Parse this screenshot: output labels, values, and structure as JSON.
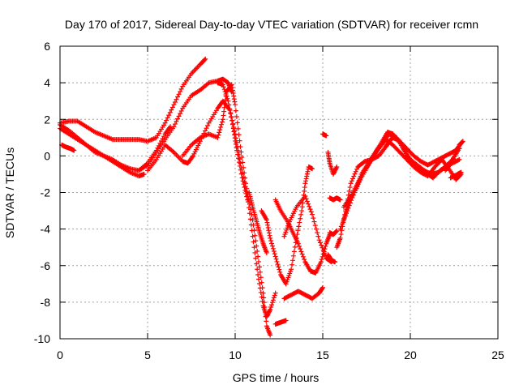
{
  "chart_data": {
    "type": "scatter",
    "title": "Day 170 of 2017, Sidereal Day-to-day VTEC variation (SDTVAR) for receiver rcmn",
    "xlabel": "GPS time / hours",
    "ylabel": "SDTVAR / TECUs",
    "xlim": [
      0,
      25
    ],
    "ylim": [
      -10,
      6
    ],
    "xticks": [
      0,
      5,
      10,
      15,
      20,
      25
    ],
    "yticks": [
      -10,
      -8,
      -6,
      -4,
      -2,
      0,
      2,
      4,
      6
    ],
    "grid": true,
    "marker": "+",
    "color": "#ff0000",
    "series": [
      {
        "x": [
          0.0,
          0.5,
          1.0,
          1.5,
          2.0,
          2.5,
          3.0,
          3.5,
          4.0,
          4.5,
          5.0,
          5.5,
          6.0,
          6.5,
          7.0,
          7.5,
          8.0,
          8.3
        ],
        "y": [
          1.8,
          1.9,
          1.9,
          1.6,
          1.3,
          1.1,
          0.9,
          0.9,
          0.9,
          0.9,
          0.8,
          1.0,
          1.8,
          2.8,
          3.8,
          4.5,
          5.0,
          5.3
        ]
      },
      {
        "x": [
          0.0,
          0.5,
          1.0,
          1.5,
          2.0,
          2.5,
          3.0,
          3.5,
          4.0,
          4.5,
          5.0,
          5.5,
          6.0,
          6.3
        ],
        "y": [
          1.7,
          1.4,
          1.0,
          0.6,
          0.2,
          0.0,
          -0.2,
          -0.5,
          -0.7,
          -0.8,
          -0.4,
          0.3,
          1.2,
          1.6
        ]
      },
      {
        "x": [
          0.0,
          0.5,
          1.0,
          1.5,
          2.0,
          2.5,
          3.0,
          3.5,
          4.0,
          4.5,
          4.8
        ],
        "y": [
          1.5,
          1.2,
          0.9,
          0.6,
          0.3,
          0.0,
          -0.3,
          -0.6,
          -0.9,
          -1.1,
          -1.0
        ]
      },
      {
        "x": [
          0.1,
          0.3,
          0.6,
          0.8
        ],
        "y": [
          0.6,
          0.5,
          0.4,
          0.3
        ]
      },
      {
        "x": [
          4.5,
          5.0,
          5.5,
          6.0,
          6.5,
          7.0,
          7.5,
          8.0,
          8.5,
          9.0,
          9.3,
          9.6,
          9.8
        ],
        "y": [
          -0.8,
          -0.5,
          0.2,
          0.9,
          1.6,
          2.6,
          3.3,
          3.6,
          4.0,
          4.1,
          4.2,
          4.0,
          3.5
        ]
      },
      {
        "x": [
          5.0,
          5.5,
          6.0,
          6.5,
          7.0,
          7.3,
          7.6,
          8.0,
          8.5,
          9.0,
          9.3,
          9.7,
          10.0,
          10.3,
          10.7,
          11.0,
          11.3,
          11.6,
          11.8,
          12.0,
          12.3
        ],
        "y": [
          -0.8,
          -0.2,
          0.6,
          0.2,
          -0.3,
          -0.4,
          0.0,
          0.8,
          1.8,
          2.6,
          3.0,
          2.5,
          1.2,
          -0.4,
          -2.2,
          -4.4,
          -6.5,
          -8.2,
          -8.8,
          -8.4,
          -7.5
        ]
      },
      {
        "x": [
          7.0,
          7.5,
          8.0,
          8.5,
          9.0,
          9.3,
          9.5,
          9.8,
          10.0,
          10.3,
          10.6,
          11.0,
          11.3,
          11.6,
          11.8,
          12.0
        ],
        "y": [
          0.0,
          0.6,
          1.0,
          1.2,
          1.0,
          2.0,
          3.5,
          3.9,
          2.8,
          0.5,
          -1.5,
          -3.5,
          -5.5,
          -7.5,
          -9.3,
          -9.8
        ]
      },
      {
        "x": [
          9.0,
          9.3,
          9.6,
          9.9,
          10.1,
          10.4,
          10.7
        ],
        "y": [
          4.0,
          3.9,
          3.0,
          1.5,
          0.3,
          -1.2,
          -2.4
        ]
      },
      {
        "x": [
          10.8,
          11.0,
          11.2,
          11.4,
          11.6,
          11.8
        ],
        "y": [
          -2.0,
          -2.8,
          -3.5,
          -4.2,
          -4.8,
          -5.3
        ]
      },
      {
        "x": [
          11.5,
          11.8,
          12.0,
          12.3,
          12.6,
          12.9,
          13.2,
          13.5,
          13.8,
          14.0,
          14.2,
          14.4
        ],
        "y": [
          -3.0,
          -3.5,
          -4.5,
          -5.5,
          -6.5,
          -7.0,
          -6.2,
          -4.5,
          -3.0,
          -1.5,
          -0.6,
          -0.7
        ]
      },
      {
        "x": [
          12.3,
          12.6,
          13.0,
          13.3,
          13.6,
          14.0,
          14.3,
          14.6,
          14.9,
          15.2,
          15.4
        ],
        "y": [
          -2.4,
          -3.0,
          -3.6,
          -4.2,
          -4.8,
          -5.8,
          -6.3,
          -6.4,
          -5.8,
          -4.8,
          -4.3
        ]
      },
      {
        "x": [
          12.8,
          13.1,
          13.5,
          14.0,
          14.4,
          14.8,
          15.2,
          15.5
        ],
        "y": [
          -4.4,
          -3.6,
          -2.8,
          -2.2,
          -3.2,
          -4.6,
          -5.6,
          -5.8
        ]
      },
      {
        "x": [
          12.8,
          13.2,
          13.6,
          14.0,
          14.4,
          14.8,
          15.0
        ],
        "y": [
          -7.8,
          -7.6,
          -7.4,
          -7.6,
          -7.8,
          -7.5,
          -7.2
        ]
      },
      {
        "x": [
          12.3,
          12.6,
          12.9
        ],
        "y": [
          -9.2,
          -9.1,
          -9.0
        ]
      },
      {
        "x": [
          15.0,
          15.2
        ],
        "y": [
          1.2,
          1.1
        ]
      },
      {
        "x": [
          15.3,
          15.4,
          15.6,
          15.8
        ],
        "y": [
          0.2,
          -0.4,
          -1.0,
          -0.6
        ]
      },
      {
        "x": [
          15.3,
          15.5,
          15.7
        ],
        "y": [
          -5.4,
          -5.7,
          -5.8
        ]
      },
      {
        "x": [
          15.4,
          15.6,
          15.8,
          16.0
        ],
        "y": [
          -2.3,
          -2.4,
          -2.3,
          -2.4
        ]
      },
      {
        "x": [
          15.4,
          15.6,
          15.8
        ],
        "y": [
          -4.2,
          -4.3,
          -4.1
        ]
      },
      {
        "x": [
          15.8,
          16.0,
          16.3,
          16.6,
          17.0,
          17.4,
          17.8,
          18.2,
          18.6,
          18.8,
          19.0,
          19.4,
          19.8,
          20.2,
          20.6,
          21.0,
          21.4,
          21.8,
          22.2,
          22.6,
          22.9
        ],
        "y": [
          -5.0,
          -4.5,
          -3.0,
          -1.5,
          -0.6,
          -0.3,
          -0.2,
          0.0,
          0.5,
          0.8,
          1.0,
          0.8,
          0.4,
          0.0,
          -0.3,
          -0.5,
          -0.3,
          -0.1,
          0.1,
          0.3,
          0.7
        ]
      },
      {
        "x": [
          16.2,
          16.5,
          16.9,
          17.2,
          17.6,
          18.0,
          18.4,
          18.7,
          19.0,
          19.4,
          19.8,
          20.2,
          20.6,
          21.0,
          21.3,
          21.7,
          22.0,
          22.4,
          22.8
        ],
        "y": [
          -3.5,
          -2.5,
          -1.8,
          -1.0,
          -0.4,
          0.2,
          0.8,
          1.3,
          1.2,
          0.8,
          0.0,
          -0.4,
          -0.8,
          -1.0,
          -1.2,
          -0.8,
          -0.6,
          -0.4,
          -0.2
        ]
      },
      {
        "x": [
          16.0,
          16.4,
          16.8,
          17.2,
          17.6,
          18.0,
          18.4,
          18.8,
          19.2,
          19.6,
          20.0,
          20.4,
          20.8,
          21.2,
          21.6,
          22.0,
          22.4,
          22.8
        ],
        "y": [
          -4.0,
          -3.0,
          -2.0,
          -1.2,
          -0.5,
          0.2,
          0.7,
          1.2,
          1.0,
          0.4,
          -0.2,
          -0.5,
          -0.8,
          -1.0,
          -0.9,
          -0.6,
          -0.2,
          0.4
        ]
      },
      {
        "x": [
          16.2,
          16.6,
          17.0,
          17.4,
          17.8,
          18.2,
          18.6,
          19.0,
          19.4,
          19.8,
          20.2,
          20.6,
          21.0,
          21.4,
          21.8,
          22.2,
          22.6,
          22.9
        ],
        "y": [
          -2.8,
          -2.2,
          -1.5,
          -0.8,
          -0.2,
          0.4,
          0.9,
          0.6,
          0.2,
          -0.2,
          -0.6,
          -0.9,
          -1.1,
          -0.6,
          -0.2,
          -0.7,
          -1.3,
          -1.0
        ]
      },
      {
        "x": [
          22.0,
          22.4,
          22.8,
          23.0
        ],
        "y": [
          -0.8,
          -0.3,
          0.6,
          0.8
        ]
      },
      {
        "x": [
          22.3,
          22.7,
          22.9
        ],
        "y": [
          -1.2,
          -1.0,
          -0.9
        ]
      }
    ]
  }
}
